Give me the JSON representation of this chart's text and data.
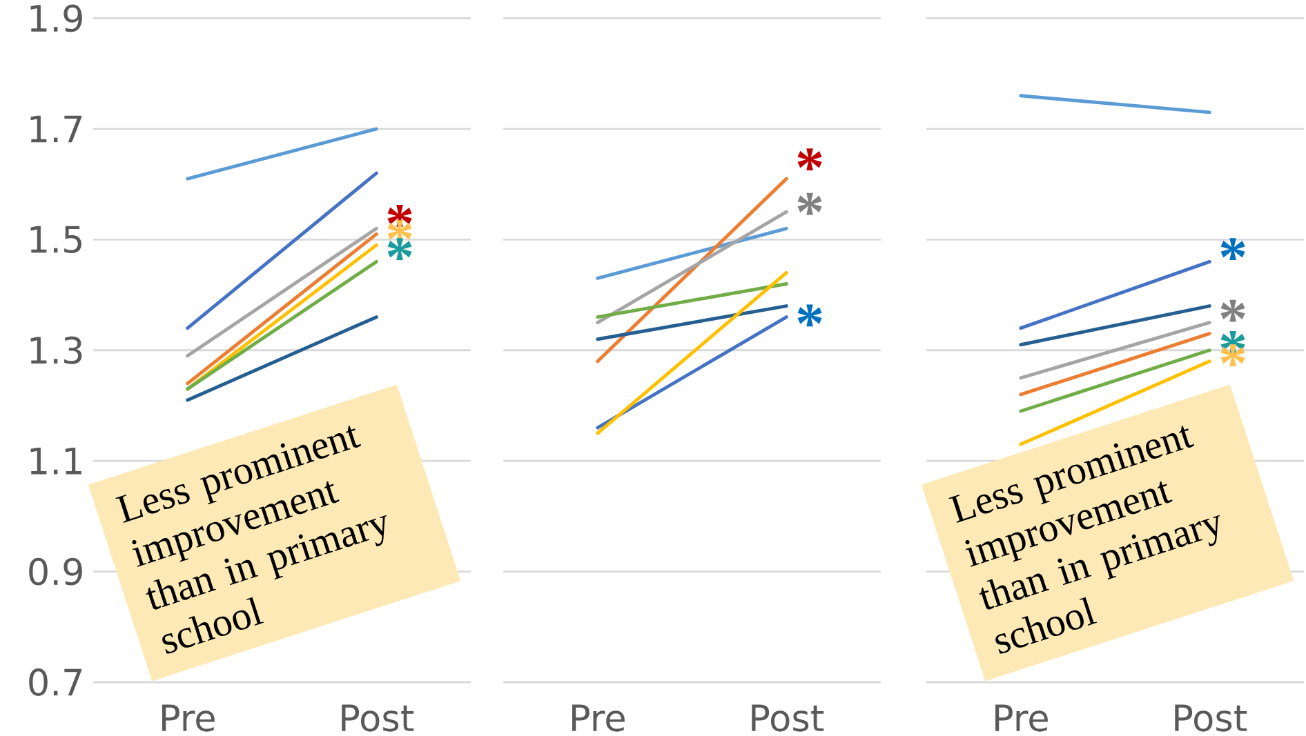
{
  "chart_data": [
    {
      "type": "line",
      "categories": [
        "Pre",
        "Post"
      ],
      "ylim": [
        0.7,
        1.9
      ],
      "yticks": [
        0.7,
        0.9,
        1.1,
        1.3,
        1.5,
        1.7,
        1.9
      ],
      "grid": "y",
      "series": [
        {
          "color": "#5b9bd5",
          "values": [
            1.61,
            1.7
          ]
        },
        {
          "color": "#4472c4",
          "values": [
            1.34,
            1.62
          ]
        },
        {
          "color": "#a5a5a5",
          "values": [
            1.29,
            1.52
          ]
        },
        {
          "color": "#ed7d31",
          "values": [
            1.24,
            1.51
          ]
        },
        {
          "color": "#ffc000",
          "values": [
            1.23,
            1.49
          ]
        },
        {
          "color": "#70ad47",
          "values": [
            1.23,
            1.46
          ]
        },
        {
          "color": "#255e91",
          "values": [
            1.21,
            1.36
          ]
        }
      ],
      "annotations": [
        "*",
        "*",
        "*",
        "Less prominent improvement than in primary school"
      ]
    },
    {
      "type": "line",
      "categories": [
        "Pre",
        "Post"
      ],
      "ylim": [
        0.7,
        1.9
      ],
      "yticks": [
        0.7,
        0.9,
        1.1,
        1.3,
        1.5,
        1.7,
        1.9
      ],
      "grid": "y",
      "tick_labels": "x",
      "series": [
        {
          "color": "#5b9bd5",
          "values": [
            1.43,
            1.52
          ]
        },
        {
          "color": "#ed7d31",
          "values": [
            1.28,
            1.61
          ]
        },
        {
          "color": "#a5a5a5",
          "values": [
            1.35,
            1.55
          ]
        },
        {
          "color": "#70ad47",
          "values": [
            1.36,
            1.42
          ]
        },
        {
          "color": "#255e91",
          "values": [
            1.32,
            1.38
          ]
        },
        {
          "color": "#4472c4",
          "values": [
            1.16,
            1.36
          ]
        },
        {
          "color": "#ffc000",
          "values": [
            1.15,
            1.44
          ]
        }
      ],
      "annotations": [
        "*",
        "*",
        "*"
      ]
    },
    {
      "type": "line",
      "categories": [
        "Pre",
        "Post"
      ],
      "ylim": [
        0.7,
        1.9
      ],
      "yticks": [
        0.7,
        0.9,
        1.1,
        1.3,
        1.5,
        1.7,
        1.9
      ],
      "grid": "y",
      "tick_labels": "x",
      "series": [
        {
          "color": "#5b9bd5",
          "values": [
            1.76,
            1.73
          ]
        },
        {
          "color": "#4472c4",
          "values": [
            1.34,
            1.46
          ]
        },
        {
          "color": "#255e91",
          "values": [
            1.31,
            1.38
          ]
        },
        {
          "color": "#a5a5a5",
          "values": [
            1.25,
            1.35
          ]
        },
        {
          "color": "#ed7d31",
          "values": [
            1.22,
            1.33
          ]
        },
        {
          "color": "#70ad47",
          "values": [
            1.19,
            1.3
          ]
        },
        {
          "color": "#ffc000",
          "values": [
            1.13,
            1.28
          ]
        }
      ],
      "annotations": [
        "*",
        "*",
        "*",
        "*",
        "Less prominent improvement than in primary school"
      ]
    }
  ]
}
